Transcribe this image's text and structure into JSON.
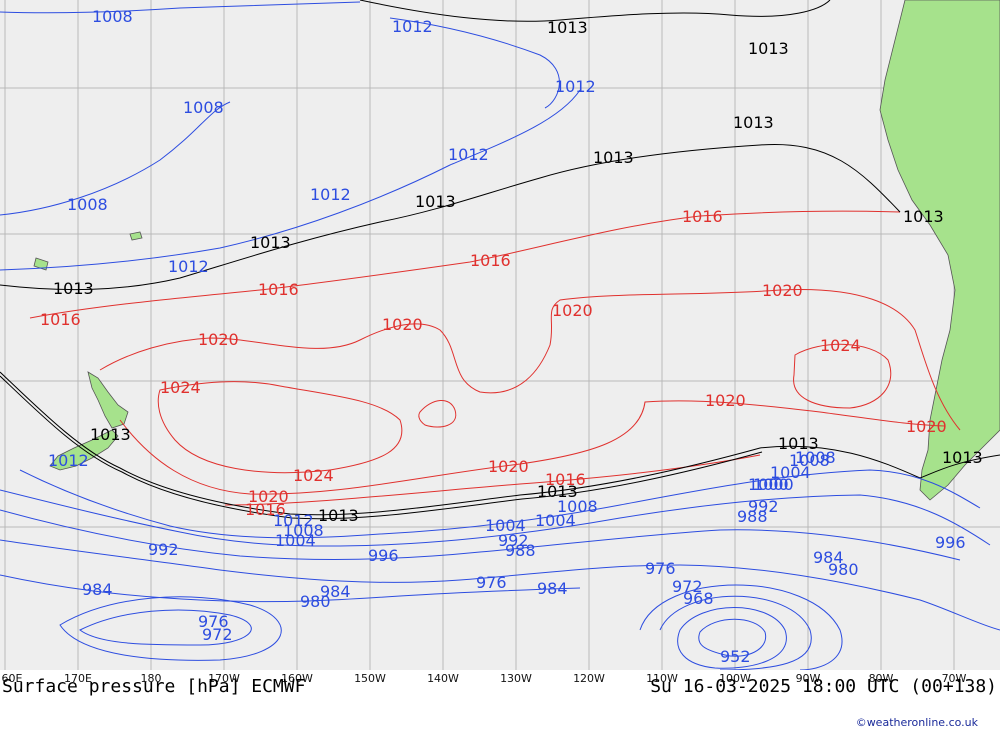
{
  "map": {
    "background_color": "#eeeeee",
    "land_color": "#a6e28c",
    "grid_color": "#b9b9b9",
    "isobar_colors": {
      "low": "#2d4de0",
      "mid": "#000000",
      "high": "#e0312e"
    },
    "longitude_labels": [
      "60E",
      "170E",
      "180",
      "170W",
      "160W",
      "150W",
      "140W",
      "130W",
      "120W",
      "110W",
      "100W",
      "90W",
      "80W",
      "70W"
    ],
    "isobar_labels": [
      {
        "value": "1008",
        "color": "low"
      },
      {
        "value": "1012",
        "color": "low"
      },
      {
        "value": "1013",
        "color": "mid"
      },
      {
        "value": "1013",
        "color": "mid"
      },
      {
        "value": "1012",
        "color": "low"
      },
      {
        "value": "1013",
        "color": "mid"
      },
      {
        "value": "1008",
        "color": "low"
      },
      {
        "value": "1012",
        "color": "low"
      },
      {
        "value": "1013",
        "color": "mid"
      },
      {
        "value": "1013",
        "color": "mid"
      },
      {
        "value": "1012",
        "color": "low"
      },
      {
        "value": "1008",
        "color": "low"
      },
      {
        "value": "1013",
        "color": "mid"
      },
      {
        "value": "1013",
        "color": "mid"
      },
      {
        "value": "1012",
        "color": "low"
      },
      {
        "value": "1013",
        "color": "mid"
      },
      {
        "value": "1016",
        "color": "high"
      },
      {
        "value": "1016",
        "color": "high"
      },
      {
        "value": "1016",
        "color": "high"
      },
      {
        "value": "1016",
        "color": "high"
      },
      {
        "value": "1020",
        "color": "high"
      },
      {
        "value": "1020",
        "color": "high"
      },
      {
        "value": "1020",
        "color": "high"
      },
      {
        "value": "1020",
        "color": "high"
      },
      {
        "value": "1024",
        "color": "high"
      },
      {
        "value": "1024",
        "color": "high"
      },
      {
        "value": "1024",
        "color": "high"
      },
      {
        "value": "1020",
        "color": "high"
      },
      {
        "value": "1020",
        "color": "high"
      },
      {
        "value": "1020",
        "color": "high"
      },
      {
        "value": "1020",
        "color": "high"
      },
      {
        "value": "1016",
        "color": "high"
      },
      {
        "value": "1016",
        "color": "high"
      },
      {
        "value": "1013",
        "color": "mid"
      },
      {
        "value": "1013",
        "color": "mid"
      },
      {
        "value": "1013",
        "color": "mid"
      },
      {
        "value": "1013",
        "color": "mid"
      },
      {
        "value": "1013",
        "color": "mid"
      },
      {
        "value": "1012",
        "color": "low"
      },
      {
        "value": "1008",
        "color": "low"
      },
      {
        "value": "1004",
        "color": "low"
      },
      {
        "value": "1012",
        "color": "low"
      },
      {
        "value": "1008",
        "color": "low"
      },
      {
        "value": "1004",
        "color": "low"
      },
      {
        "value": "1000",
        "color": "low"
      },
      {
        "value": "1004",
        "color": "low"
      },
      {
        "value": "1008",
        "color": "low"
      },
      {
        "value": "1008",
        "color": "low"
      },
      {
        "value": "1004",
        "color": "low"
      },
      {
        "value": "1000",
        "color": "low"
      },
      {
        "value": "992",
        "color": "low"
      },
      {
        "value": "996",
        "color": "low"
      },
      {
        "value": "992",
        "color": "low"
      },
      {
        "value": "988",
        "color": "low"
      },
      {
        "value": "992",
        "color": "low"
      },
      {
        "value": "988",
        "color": "low"
      },
      {
        "value": "984",
        "color": "low"
      },
      {
        "value": "980",
        "color": "low"
      },
      {
        "value": "996",
        "color": "low"
      },
      {
        "value": "984",
        "color": "low"
      },
      {
        "value": "984",
        "color": "low"
      },
      {
        "value": "980",
        "color": "low"
      },
      {
        "value": "976",
        "color": "low"
      },
      {
        "value": "984",
        "color": "low"
      },
      {
        "value": "976",
        "color": "low"
      },
      {
        "value": "976",
        "color": "low"
      },
      {
        "value": "972",
        "color": "low"
      },
      {
        "value": "972",
        "color": "low"
      },
      {
        "value": "968",
        "color": "low"
      },
      {
        "value": "952",
        "color": "low"
      }
    ]
  },
  "footer": {
    "title": "Surface pressure [hPa] ECMWF",
    "valid_time": "Su 16-03-2025 18:00 UTC (00+138)",
    "credit": "©weatheronline.co.uk"
  }
}
